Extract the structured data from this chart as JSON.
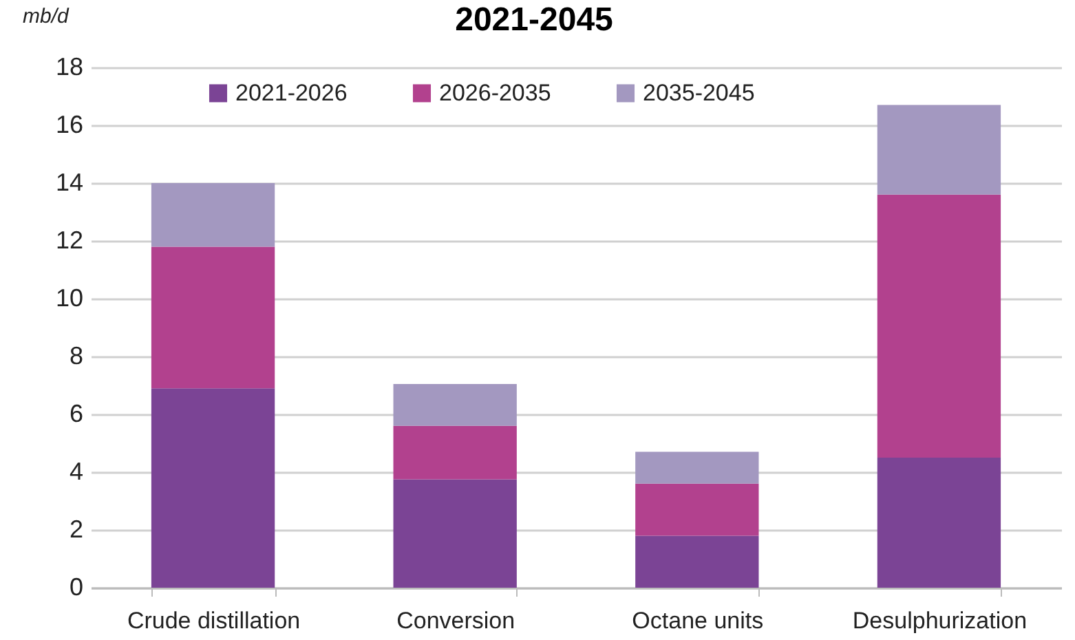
{
  "chart_data": {
    "type": "bar",
    "title": "2021-2045",
    "ylabel": "mb/d",
    "stacked": true,
    "categories": [
      "Crude distillation",
      "Conversion",
      "Octane units",
      "Desulphurization"
    ],
    "series": [
      {
        "name": "2021-2026",
        "color": "#7b4495",
        "values": [
          6.9,
          3.75,
          1.8,
          4.5
        ]
      },
      {
        "name": "2026-2035",
        "color": "#b2418e",
        "values": [
          4.9,
          1.85,
          1.8,
          9.1
        ]
      },
      {
        "name": "2035-2045",
        "color": "#a398c0",
        "values": [
          2.2,
          1.45,
          1.1,
          3.1
        ]
      }
    ],
    "ylim": [
      0,
      18
    ],
    "yticks": [
      0,
      2,
      4,
      6,
      8,
      10,
      12,
      14,
      16,
      18
    ],
    "grid": "y",
    "legend": "top"
  }
}
